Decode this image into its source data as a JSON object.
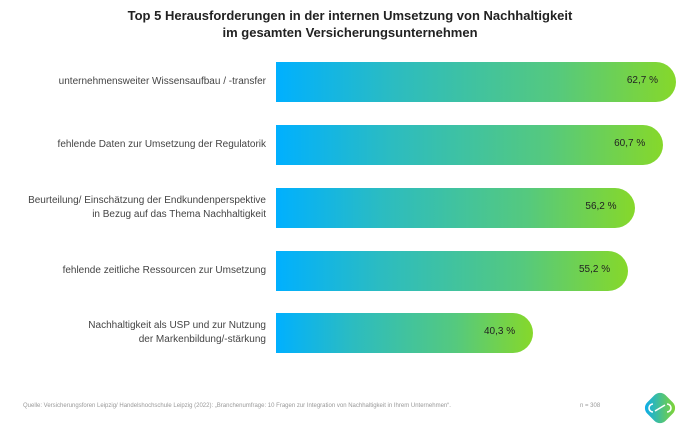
{
  "chart_data": {
    "type": "bar",
    "orientation": "horizontal",
    "title": "Top 5 Herausforderungen in der internen Umsetzung von Nachhaltigkeit im gesamten Versicherungsunternehmen",
    "title_lines": [
      "Top 5 Herausforderungen in der internen Umsetzung von Nachhaltigkeit",
      "im gesamten Versicherungsunternehmen"
    ],
    "categories": [
      [
        "unternehmensweiter Wissensaufbau / -transfer"
      ],
      [
        "fehlende Daten zur Umsetzung der Regulatorik"
      ],
      [
        "Beurteilung/ Einschätzung der Endkundenperspektive",
        "in Bezug auf das Thema Nachhaltigkeit"
      ],
      [
        "fehlende zeitliche Ressourcen zur Umsetzung"
      ],
      [
        "Nachhaltigkeit als USP und zur Nutzung",
        "der Markenbildung/-stärkung"
      ]
    ],
    "values": [
      62.7,
      60.7,
      56.2,
      55.2,
      40.3
    ],
    "value_labels": [
      "62,7 %",
      "60,7 %",
      "56,2 %",
      "55,2 %",
      "40,3 %"
    ],
    "xlim": [
      0,
      65
    ],
    "grid": false,
    "colors": {
      "gradient_start": "#00b0ff",
      "gradient_end": "#86d82a"
    }
  },
  "footer": {
    "source": "Quelle: Versicherungsforen Leipzig/ Handelshochschule Leipzig (2022): „Branchenumfrage: 10 Fragen zur Integration von Nachhaltigkeit in Ihrem Unternehmen“.",
    "n": "n = 308"
  },
  "logo": {
    "icon": "infinity-logo-icon"
  }
}
